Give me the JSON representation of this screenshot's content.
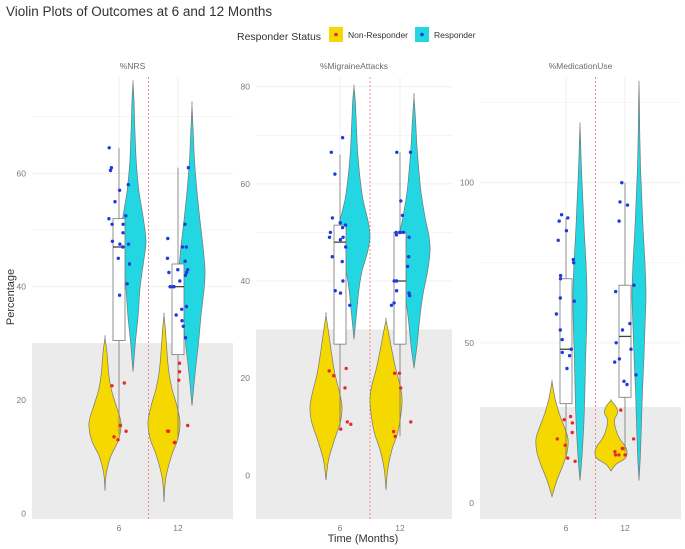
{
  "chart_data": {
    "type": "violin",
    "title": "Violin Plots of Outcomes at 6 and 12 Months",
    "xlabel": "Time (Months)",
    "ylabel": "Percentage",
    "legend": {
      "title": "Responder Status",
      "position": "top",
      "entries": [
        {
          "name": "Non-Responder",
          "fill": "#f5d800",
          "point": "#e8282a"
        },
        {
          "name": "Responder",
          "fill": "#22d6e2",
          "point": "#1f3adb"
        }
      ]
    },
    "categories": [
      "6",
      "12"
    ],
    "colors": {
      "non_responder": "#f5d800",
      "responder": "#22d6e2",
      "np_point": "#e8282a",
      "r_point": "#1f3adb",
      "divider": "#f08a8a",
      "band": "#ebebeb",
      "grid": "#efefef",
      "outline": "#777777"
    },
    "panels": [
      {
        "label": "%NRS",
        "ylim": [
          -1,
          77
        ],
        "yticks": [
          0,
          20,
          40,
          60
        ],
        "threshold": 30,
        "groups": [
          {
            "time": "6",
            "box": {
              "lower": 14,
              "q1": 30.5,
              "median": 47,
              "q3": 52,
              "upper": 64.5
            },
            "non_responder": {
              "min": 4,
              "max": 31,
              "density": [
                [
                  4,
                  0
                ],
                [
                  7,
                  0.08
                ],
                [
                  10,
                  0.35
                ],
                [
                  13,
                  0.85
                ],
                [
                  16,
                  1.0
                ],
                [
                  19,
                  0.7
                ],
                [
                  22,
                  0.38
                ],
                [
                  25,
                  0.22
                ],
                [
                  28,
                  0.14
                ],
                [
                  31,
                  0
                ]
              ],
              "points": [
                22.5,
                23,
                15.5,
                13,
                13.5,
                14.5
              ]
            },
            "responder": {
              "min": 25,
              "max": 76,
              "density": [
                [
                  25,
                  0
                ],
                [
                  30,
                  0.18
                ],
                [
                  35,
                  0.4
                ],
                [
                  40,
                  0.55
                ],
                [
                  45,
                  0.85
                ],
                [
                  48,
                  1.0
                ],
                [
                  52,
                  0.8
                ],
                [
                  57,
                  0.45
                ],
                [
                  62,
                  0.25
                ],
                [
                  68,
                  0.14
                ],
                [
                  73,
                  0.08
                ],
                [
                  76,
                  0
                ]
              ],
              "points": [
                64.5,
                61,
                60.5,
                52.5,
                48,
                51,
                49.5,
                47.5,
                47,
                44,
                40.5,
                38.5,
                58,
                57,
                55,
                51,
                47.5,
                45,
                52
              ]
            }
          },
          {
            "time": "12",
            "box": {
              "lower": 13,
              "q1": 28,
              "median": 40,
              "q3": 44,
              "upper": 61
            },
            "non_responder": {
              "min": 2,
              "max": 35,
              "density": [
                [
                  2,
                  0
                ],
                [
                  6,
                  0.1
                ],
                [
                  10,
                  0.45
                ],
                [
                  13,
                  0.85
                ],
                [
                  16,
                  1.0
                ],
                [
                  19,
                  0.8
                ],
                [
                  22,
                  0.5
                ],
                [
                  25,
                  0.3
                ],
                [
                  28,
                  0.2
                ],
                [
                  32,
                  0.1
                ],
                [
                  35,
                  0
                ]
              ],
              "points": [
                14.5,
                14.5,
                12.5,
                12.5,
                15.5,
                23.5,
                25,
                26.5
              ]
            },
            "responder": {
              "min": 19,
              "max": 72,
              "density": [
                [
                  19,
                  0
                ],
                [
                  25,
                  0.25
                ],
                [
                  30,
                  0.5
                ],
                [
                  35,
                  0.7
                ],
                [
                  40,
                  0.95
                ],
                [
                  43,
                  1.0
                ],
                [
                  47,
                  0.85
                ],
                [
                  52,
                  0.6
                ],
                [
                  57,
                  0.38
                ],
                [
                  62,
                  0.2
                ],
                [
                  67,
                  0.1
                ],
                [
                  72,
                  0
                ]
              ],
              "points": [
                61,
                51,
                48.5,
                45,
                44.5,
                42.5,
                40,
                40,
                36,
                35,
                33,
                31,
                47,
                47,
                43,
                42,
                40,
                36.5,
                34,
                43,
                41,
                42.5
              ]
            }
          }
        ]
      },
      {
        "label": "%MigraineAttacks",
        "ylim": [
          -9,
          82
        ],
        "yticks": [
          0,
          20,
          40,
          60,
          80
        ],
        "threshold": 30,
        "groups": [
          {
            "time": "6",
            "box": {
              "lower": 10,
              "q1": 27,
              "median": 48,
              "q3": 51.5,
              "upper": 66
            },
            "non_responder": {
              "min": -1,
              "max": 33,
              "density": [
                [
                  -1,
                  0
                ],
                [
                  3,
                  0.15
                ],
                [
                  7,
                  0.5
                ],
                [
                  11,
                  0.9
                ],
                [
                  14,
                  1.0
                ],
                [
                  17,
                  0.85
                ],
                [
                  21,
                  0.55
                ],
                [
                  25,
                  0.35
                ],
                [
                  29,
                  0.18
                ],
                [
                  33,
                  0
                ]
              ],
              "points": [
                22,
                21.5,
                20.5,
                18,
                11,
                10.5,
                9.5
              ]
            },
            "responder": {
              "min": 28,
              "max": 80,
              "density": [
                [
                  28,
                  0
                ],
                [
                  33,
                  0.15
                ],
                [
                  38,
                  0.3
                ],
                [
                  42,
                  0.5
                ],
                [
                  46,
                  0.85
                ],
                [
                  49,
                  1.0
                ],
                [
                  52,
                  0.9
                ],
                [
                  57,
                  0.55
                ],
                [
                  62,
                  0.35
                ],
                [
                  67,
                  0.22
                ],
                [
                  72,
                  0.15
                ],
                [
                  77,
                  0.08
                ],
                [
                  80,
                  0
                ]
              ],
              "points": [
                69.5,
                66.5,
                62,
                53,
                52,
                51.5,
                51,
                50,
                49,
                48.5,
                45,
                44,
                40,
                38,
                37.5,
                35,
                47,
                49
              ]
            }
          },
          {
            "time": "12",
            "box": {
              "lower": 8,
              "q1": 27,
              "median": 40,
              "q3": 50,
              "upper": 66.5
            },
            "non_responder": {
              "min": -3,
              "max": 32,
              "density": [
                [
                  -3,
                  0
                ],
                [
                  1,
                  0.1
                ],
                [
                  5,
                  0.35
                ],
                [
                  9,
                  0.75
                ],
                [
                  13,
                  0.95
                ],
                [
                  16,
                  1.0
                ],
                [
                  19,
                  0.85
                ],
                [
                  22,
                  0.6
                ],
                [
                  26,
                  0.35
                ],
                [
                  29,
                  0.18
                ],
                [
                  32,
                  0
                ]
              ],
              "points": [
                21,
                21,
                18,
                11,
                9,
                8
              ]
            },
            "responder": {
              "min": 22,
              "max": 78,
              "density": [
                [
                  22,
                  0
                ],
                [
                  27,
                  0.2
                ],
                [
                  32,
                  0.35
                ],
                [
                  37,
                  0.55
                ],
                [
                  42,
                  0.85
                ],
                [
                  46,
                  1.0
                ],
                [
                  49,
                  0.95
                ],
                [
                  53,
                  0.7
                ],
                [
                  58,
                  0.45
                ],
                [
                  63,
                  0.3
                ],
                [
                  68,
                  0.18
                ],
                [
                  73,
                  0.1
                ],
                [
                  78,
                  0
                ]
              ],
              "points": [
                66.5,
                66.5,
                56.5,
                53.5,
                50,
                50,
                50,
                50,
                49.5,
                49,
                40,
                40,
                38,
                37.5,
                37,
                35.5,
                35,
                43,
                45
              ]
            }
          }
        ]
      },
      {
        "label": "%MedicationUse",
        "ylim": [
          -5,
          133
        ],
        "yticks": [
          0,
          50,
          100
        ],
        "threshold": 30,
        "groups": [
          {
            "time": "6",
            "box": {
              "lower": 14,
              "q1": 31,
              "median": 48,
              "q3": 70,
              "upper": 89
            },
            "non_responder": {
              "min": 2,
              "max": 38,
              "density": [
                [
                  2,
                  0
                ],
                [
                  7,
                  0.3
                ],
                [
                  12,
                  0.7
                ],
                [
                  16,
                  0.95
                ],
                [
                  20,
                  1.0
                ],
                [
                  24,
                  0.75
                ],
                [
                  28,
                  0.45
                ],
                [
                  32,
                  0.22
                ],
                [
                  35,
                  0.1
                ],
                [
                  38,
                  0
                ]
              ],
              "points": [
                27,
                25,
                22,
                20,
                18,
                14,
                13,
                26
              ]
            },
            "responder": {
              "min": 7,
              "max": 118,
              "density": [
                [
                  7,
                  0
                ],
                [
                  15,
                  0.3
                ],
                [
                  25,
                  0.55
                ],
                [
                  35,
                  0.7
                ],
                [
                  45,
                  0.8
                ],
                [
                  55,
                  0.95
                ],
                [
                  65,
                  1.0
                ],
                [
                  75,
                  0.85
                ],
                [
                  85,
                  0.6
                ],
                [
                  95,
                  0.4
                ],
                [
                  105,
                  0.2
                ],
                [
                  112,
                  0.1
                ],
                [
                  118,
                  0
                ]
              ],
              "points": [
                90,
                89,
                85,
                71,
                70,
                64,
                59,
                54,
                51,
                48,
                46,
                88,
                82,
                76,
                75,
                47,
                42,
                63
              ]
            }
          },
          {
            "time": "12",
            "box": {
              "lower": 16,
              "q1": 33,
              "median": 52,
              "q3": 68,
              "upper": 100
            },
            "non_responder": {
              "min": 10,
              "max": 32,
              "density": [
                [
                  10,
                  0
                ],
                [
                  12,
                  0.3
                ],
                [
                  14,
                  0.9
                ],
                [
                  16,
                  1.0
                ],
                [
                  18,
                  0.85
                ],
                [
                  20,
                  0.55
                ],
                [
                  23,
                  0.3
                ],
                [
                  26,
                  0.22
                ],
                [
                  28,
                  0.4
                ],
                [
                  30,
                  0.32
                ],
                [
                  32,
                  0
                ]
              ],
              "points": [
                29,
                20,
                17,
                17,
                16,
                15,
                15,
                15
              ]
            },
            "responder": {
              "min": 7,
              "max": 131,
              "density": [
                [
                  7,
                  0
                ],
                [
                  15,
                  0.2
                ],
                [
                  25,
                  0.35
                ],
                [
                  35,
                  0.5
                ],
                [
                  45,
                  0.7
                ],
                [
                  55,
                  0.85
                ],
                [
                  65,
                  1.0
                ],
                [
                  75,
                  0.85
                ],
                [
                  85,
                  0.6
                ],
                [
                  95,
                  0.4
                ],
                [
                  105,
                  0.22
                ],
                [
                  115,
                  0.12
                ],
                [
                  125,
                  0.05
                ],
                [
                  131,
                  0
                ]
              ],
              "points": [
                100,
                94,
                93,
                88,
                68,
                66,
                56,
                54,
                50,
                48,
                45,
                44,
                40,
                37,
                38
              ]
            }
          }
        ]
      }
    ]
  }
}
